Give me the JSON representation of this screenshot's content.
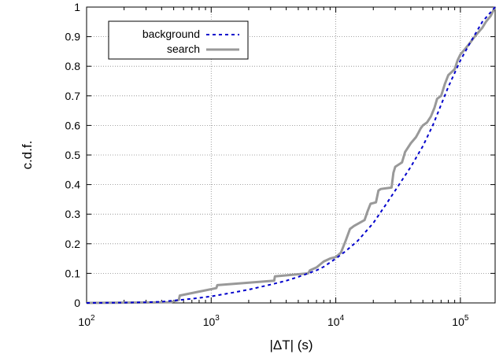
{
  "chart_data": {
    "type": "line",
    "xlabel": "|ΔT| (s)",
    "ylabel": "c.d.f.",
    "xscale": "log",
    "xlim": [
      100,
      190000
    ],
    "ylim": [
      0,
      1
    ],
    "grid": true,
    "legend_position": "top-left",
    "x_ticks": [
      {
        "value": 100,
        "base": "10",
        "exp": "2"
      },
      {
        "value": 1000,
        "base": "10",
        "exp": "3"
      },
      {
        "value": 10000,
        "base": "10",
        "exp": "4"
      },
      {
        "value": 100000,
        "base": "10",
        "exp": "5"
      }
    ],
    "y_ticks": [
      {
        "value": 0,
        "label": "0"
      },
      {
        "value": 0.1,
        "label": "0.1"
      },
      {
        "value": 0.2,
        "label": "0.2"
      },
      {
        "value": 0.3,
        "label": "0.3"
      },
      {
        "value": 0.4,
        "label": "0.4"
      },
      {
        "value": 0.5,
        "label": "0.5"
      },
      {
        "value": 0.6,
        "label": "0.6"
      },
      {
        "value": 0.7,
        "label": "0.7"
      },
      {
        "value": 0.8,
        "label": "0.8"
      },
      {
        "value": 0.9,
        "label": "0.9"
      },
      {
        "value": 1,
        "label": "1"
      }
    ],
    "series": [
      {
        "name": "background",
        "color": "#0000cc",
        "style": "dashed",
        "x": [
          100,
          200,
          300,
          400,
          500,
          700,
          1000,
          1500,
          2000,
          3000,
          4000,
          5000,
          6000,
          7000,
          8000,
          10000,
          12000,
          15000,
          20000,
          25000,
          30000,
          40000,
          50000,
          60000,
          70000,
          80000,
          100000,
          120000,
          150000,
          190000
        ],
        "y": [
          0.0,
          0.001,
          0.002,
          0.004,
          0.008,
          0.014,
          0.022,
          0.035,
          0.045,
          0.062,
          0.075,
          0.088,
          0.1,
          0.11,
          0.122,
          0.15,
          0.175,
          0.21,
          0.27,
          0.33,
          0.38,
          0.46,
          0.53,
          0.6,
          0.67,
          0.73,
          0.82,
          0.88,
          0.95,
          1.0
        ]
      },
      {
        "name": "search",
        "color": "#999999",
        "style": "solid",
        "x": [
          100,
          470,
          550,
          560,
          1100,
          1120,
          3200,
          3250,
          6000,
          6200,
          7000,
          8000,
          9000,
          10000,
          11000,
          12000,
          13000,
          14000,
          17000,
          18000,
          19000,
          21000,
          22000,
          23000,
          28000,
          29000,
          30000,
          34000,
          36000,
          40000,
          44000,
          46000,
          48000,
          50000,
          54000,
          58000,
          62000,
          65000,
          70000,
          75000,
          80000,
          90000,
          95000,
          100000,
          110000,
          120000,
          130000,
          150000,
          160000,
          175000,
          190000
        ],
        "y": [
          0.0,
          0.002,
          0.01,
          0.025,
          0.05,
          0.06,
          0.075,
          0.09,
          0.1,
          0.11,
          0.12,
          0.14,
          0.15,
          0.155,
          0.17,
          0.21,
          0.25,
          0.26,
          0.28,
          0.31,
          0.335,
          0.34,
          0.38,
          0.385,
          0.39,
          0.44,
          0.46,
          0.475,
          0.51,
          0.54,
          0.56,
          0.575,
          0.59,
          0.6,
          0.61,
          0.63,
          0.66,
          0.69,
          0.7,
          0.74,
          0.77,
          0.79,
          0.82,
          0.84,
          0.86,
          0.88,
          0.9,
          0.93,
          0.95,
          0.97,
          1.0
        ]
      }
    ]
  }
}
